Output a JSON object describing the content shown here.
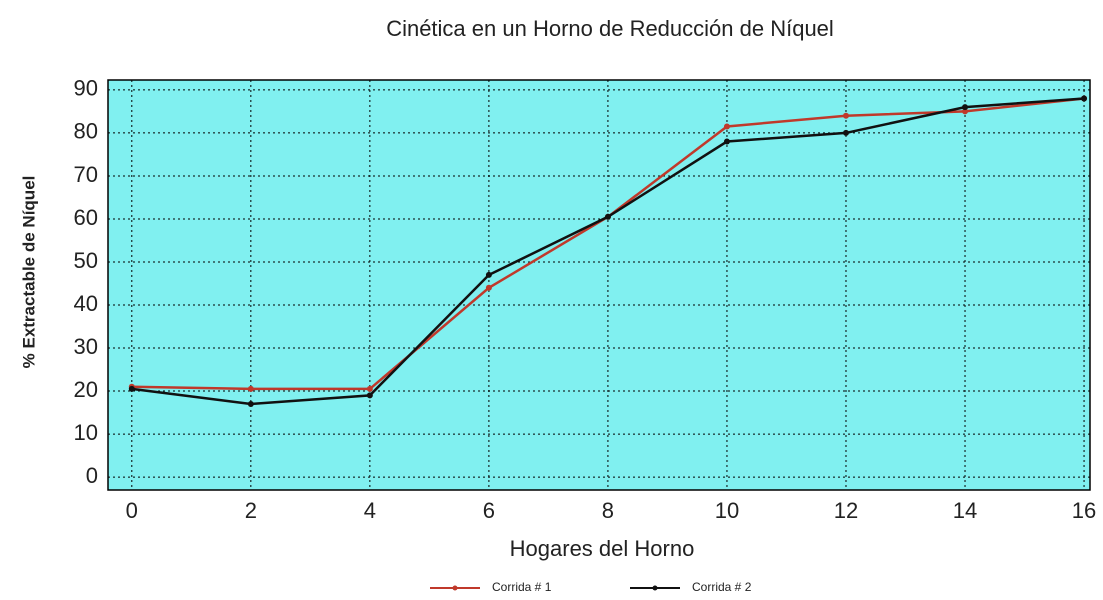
{
  "chart_data": {
    "type": "line",
    "title": "Cinética en un Horno de Reducción de Níquel",
    "x_label": "Hogares del Horno",
    "y_label": "% Extractable de Níquel",
    "x": [
      0,
      2,
      4,
      6,
      8,
      10,
      12,
      14,
      16
    ],
    "series": [
      {
        "name": "Corrida # 1",
        "color": "#c0392b",
        "values": [
          21,
          20.5,
          20.5,
          44,
          60.5,
          81.5,
          84,
          85,
          88
        ]
      },
      {
        "name": "Corrida # 2",
        "color": "#111111",
        "values": [
          20.5,
          17,
          19,
          47,
          60.5,
          78,
          80,
          86,
          88
        ]
      }
    ],
    "xlim": [
      -0.4,
      16.1
    ],
    "ylim": [
      -3,
      92.3
    ],
    "xticks": [
      0,
      2,
      4,
      6,
      8,
      10,
      12,
      14,
      16
    ],
    "yticks": [
      0,
      10,
      20,
      30,
      40,
      50,
      60,
      70,
      80,
      90
    ],
    "grid": true,
    "background": "#80f0f0",
    "legend": "bottom"
  }
}
